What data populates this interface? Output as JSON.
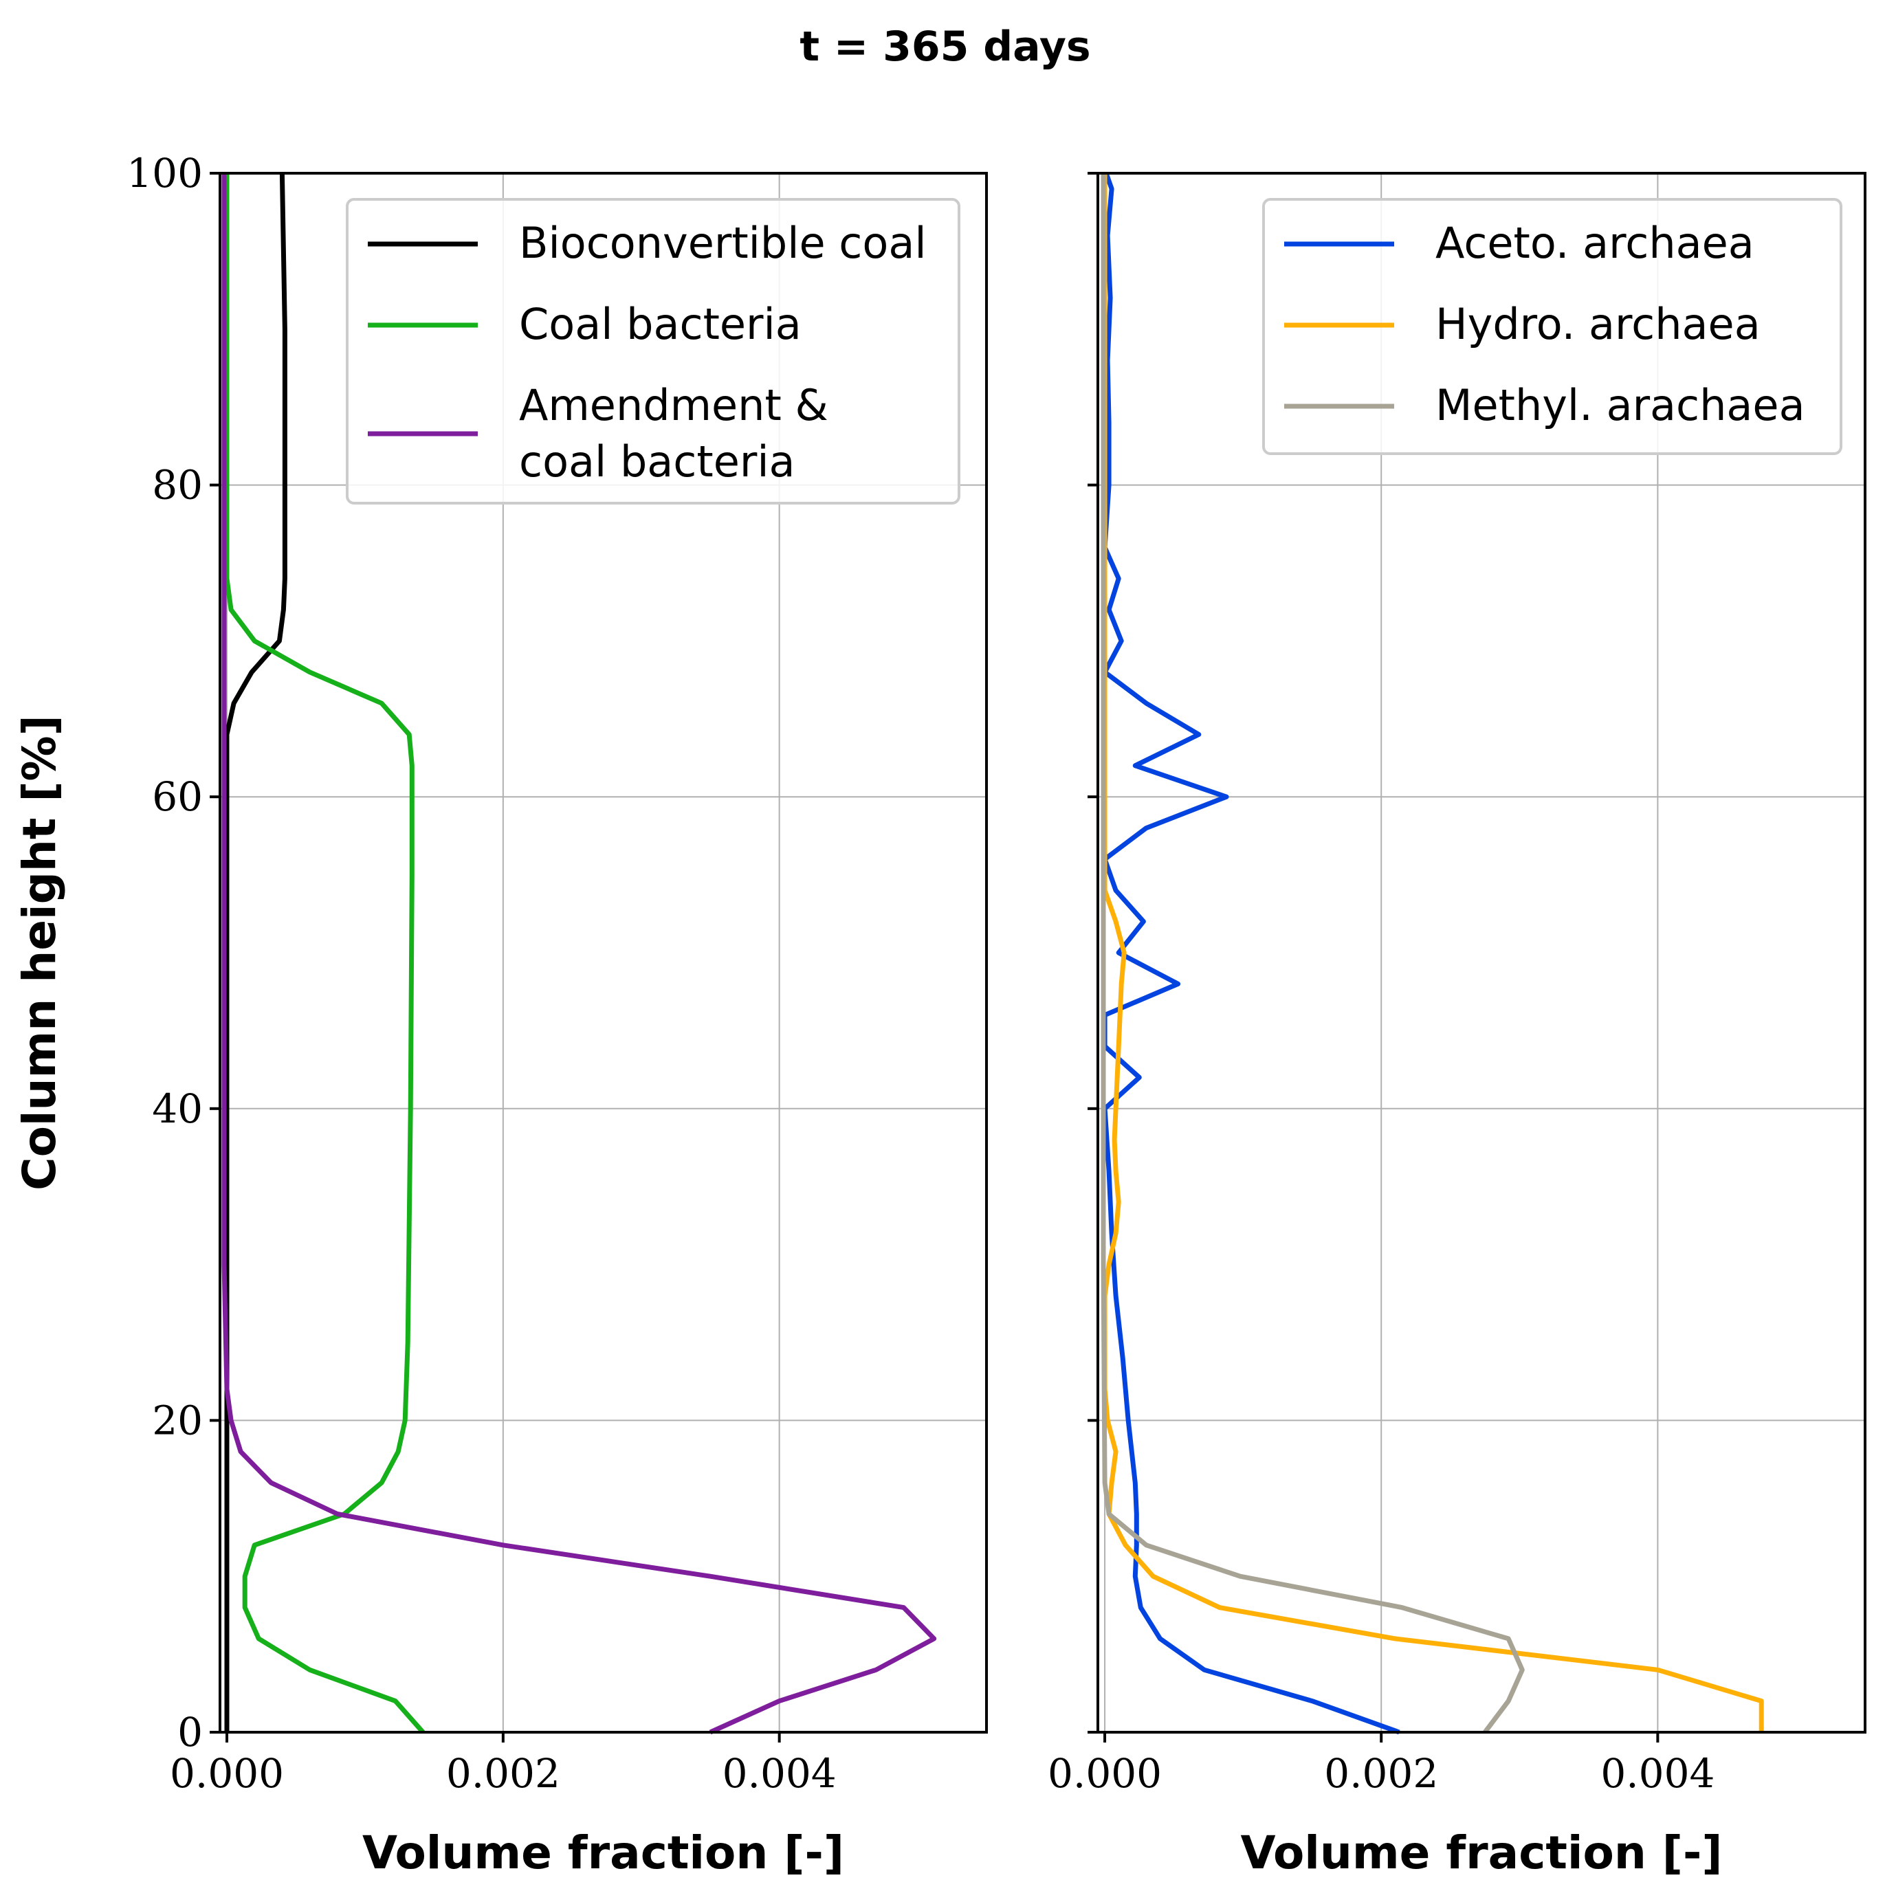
{
  "figure_title": "t = 365 days",
  "colors": {
    "bioconvertible": "#000000",
    "coal_bacteria": "#15b01a",
    "amendment": "#7e1e9c",
    "aceto": "#0343df",
    "hydro": "#ffb007",
    "methyl": "#a8a495",
    "grid": "#b0b0b0",
    "legend_border": "#cccccc"
  },
  "chart_data": [
    {
      "type": "line",
      "xlabel": "Volume fraction [-]",
      "ylabel": "Column height [%]",
      "xlim": [
        -5e-05,
        0.0055
      ],
      "ylim": [
        0,
        100
      ],
      "xticks": [
        0.0,
        0.002,
        0.004
      ],
      "xtick_labels": [
        "0.000",
        "0.002",
        "0.004"
      ],
      "yticks": [
        0,
        20,
        40,
        60,
        80,
        100
      ],
      "ytick_labels": [
        "0",
        "20",
        "40",
        "60",
        "80",
        "100"
      ],
      "grid": true,
      "legend_position": "top-right",
      "series": [
        {
          "name": "Bioconvertible coal",
          "legend_lines": [
            "Bioconvertible coal"
          ],
          "color_key": "bioconvertible",
          "points": [
            [
              0.0,
              0
            ],
            [
              0.0,
              64
            ],
            [
              5e-05,
              66
            ],
            [
              0.00018,
              68
            ],
            [
              0.00038,
              70
            ],
            [
              0.00041,
              72
            ],
            [
              0.00042,
              74
            ],
            [
              0.00042,
              80
            ],
            [
              0.00042,
              90
            ],
            [
              0.0004,
              100
            ]
          ]
        },
        {
          "name": "Coal bacteria",
          "legend_lines": [
            "Coal bacteria"
          ],
          "color_key": "coal_bacteria",
          "points": [
            [
              0.00142,
              0
            ],
            [
              0.00122,
              2
            ],
            [
              0.0006,
              4
            ],
            [
              0.00023,
              6
            ],
            [
              0.00013,
              8
            ],
            [
              0.00013,
              10
            ],
            [
              0.0002,
              12
            ],
            [
              0.00085,
              14
            ],
            [
              0.00112,
              16
            ],
            [
              0.00124,
              18
            ],
            [
              0.00129,
              20
            ],
            [
              0.00131,
              25
            ],
            [
              0.00133,
              40
            ],
            [
              0.00134,
              55
            ],
            [
              0.00134,
              62
            ],
            [
              0.00132,
              64
            ],
            [
              0.00112,
              66
            ],
            [
              0.0006,
              68
            ],
            [
              0.0002,
              70
            ],
            [
              3e-05,
              72
            ],
            [
              0.0,
              74
            ],
            [
              0.0,
              100
            ]
          ]
        },
        {
          "name": "Amendment & coal bacteria",
          "legend_lines": [
            "Amendment &",
            "coal bacteria"
          ],
          "color_key": "amendment",
          "points": [
            [
              0.0035,
              0
            ],
            [
              0.004,
              2
            ],
            [
              0.0047,
              4
            ],
            [
              0.00512,
              6
            ],
            [
              0.0049,
              8
            ],
            [
              0.0035,
              10
            ],
            [
              0.002,
              12
            ],
            [
              0.0008,
              14
            ],
            [
              0.00032,
              16
            ],
            [
              0.0001,
              18
            ],
            [
              3e-05,
              20
            ],
            [
              0.0,
              22
            ],
            [
              -2e-05,
              30
            ],
            [
              -2e-05,
              60
            ],
            [
              -2e-05,
              100
            ]
          ]
        }
      ]
    },
    {
      "type": "line",
      "xlabel": "Volume fraction [-]",
      "ylabel": "",
      "xlim": [
        -5e-05,
        0.0055
      ],
      "ylim": [
        0,
        100
      ],
      "xticks": [
        0.0,
        0.002,
        0.004
      ],
      "xtick_labels": [
        "0.000",
        "0.002",
        "0.004"
      ],
      "yticks": [
        0,
        20,
        40,
        60,
        80,
        100
      ],
      "ytick_labels": [],
      "grid": true,
      "legend_position": "top-right",
      "series": [
        {
          "name": "Aceto. archaea",
          "legend_lines": [
            "Aceto. archaea"
          ],
          "color_key": "aceto",
          "points": [
            [
              0.00213,
              0
            ],
            [
              0.0015,
              2
            ],
            [
              0.00072,
              4
            ],
            [
              0.0004,
              6
            ],
            [
              0.00026,
              8
            ],
            [
              0.00022,
              10
            ],
            [
              0.00023,
              12
            ],
            [
              0.00023,
              14
            ],
            [
              0.00022,
              16
            ],
            [
              0.00017,
              20
            ],
            [
              0.00013,
              24
            ],
            [
              8e-05,
              28
            ],
            [
              5e-05,
              32
            ],
            [
              3e-05,
              36
            ],
            [
              0.0,
              40
            ],
            [
              0.00025,
              42
            ],
            [
              0.0,
              44
            ],
            [
              0.0,
              46
            ],
            [
              0.00053,
              48
            ],
            [
              0.0001,
              50
            ],
            [
              0.00028,
              52
            ],
            [
              8e-05,
              54
            ],
            [
              0.0,
              56
            ],
            [
              0.0003,
              58
            ],
            [
              0.00088,
              60
            ],
            [
              0.00022,
              62
            ],
            [
              0.00068,
              64
            ],
            [
              0.0003,
              66
            ],
            [
              0.0,
              68
            ],
            [
              0.00012,
              70
            ],
            [
              3e-05,
              72
            ],
            [
              0.0001,
              74
            ],
            [
              0.0,
              76
            ],
            [
              3e-05,
              80
            ],
            [
              3e-05,
              84
            ],
            [
              2e-05,
              88
            ],
            [
              4e-05,
              92
            ],
            [
              2e-05,
              96
            ],
            [
              5e-05,
              99
            ],
            [
              1e-05,
              100
            ]
          ]
        },
        {
          "name": "Hydro. archaea",
          "legend_lines": [
            "Hydro. archaea"
          ],
          "color_key": "hydro",
          "points": [
            [
              0.00475,
              0
            ],
            [
              0.00475,
              2
            ],
            [
              0.004,
              4
            ],
            [
              0.0021,
              6
            ],
            [
              0.00083,
              8
            ],
            [
              0.00035,
              10
            ],
            [
              0.00015,
              12
            ],
            [
              3e-05,
              14
            ],
            [
              5e-05,
              16
            ],
            [
              8e-05,
              18
            ],
            [
              2e-05,
              20
            ],
            [
              0.0,
              22
            ],
            [
              0.0,
              28
            ],
            [
              3e-05,
              30
            ],
            [
              8e-05,
              32
            ],
            [
              0.0001,
              34
            ],
            [
              8e-05,
              36
            ],
            [
              7e-05,
              38
            ],
            [
              8e-05,
              40
            ],
            [
              0.0001,
              44
            ],
            [
              0.00012,
              48
            ],
            [
              0.00014,
              50
            ],
            [
              8e-05,
              52
            ],
            [
              0.0,
              54
            ],
            [
              0.0,
              100
            ]
          ]
        },
        {
          "name": "Methyl. arachaea",
          "legend_lines": [
            "Methyl. arachaea"
          ],
          "color_key": "methyl",
          "points": [
            [
              0.00275,
              0
            ],
            [
              0.00292,
              2
            ],
            [
              0.00302,
              4
            ],
            [
              0.00292,
              6
            ],
            [
              0.00215,
              8
            ],
            [
              0.00098,
              10
            ],
            [
              0.0003,
              12
            ],
            [
              3e-05,
              14
            ],
            [
              0.0,
              16
            ],
            [
              -1e-05,
              30
            ],
            [
              -1e-05,
              60
            ],
            [
              -1e-05,
              100
            ]
          ]
        }
      ]
    }
  ]
}
